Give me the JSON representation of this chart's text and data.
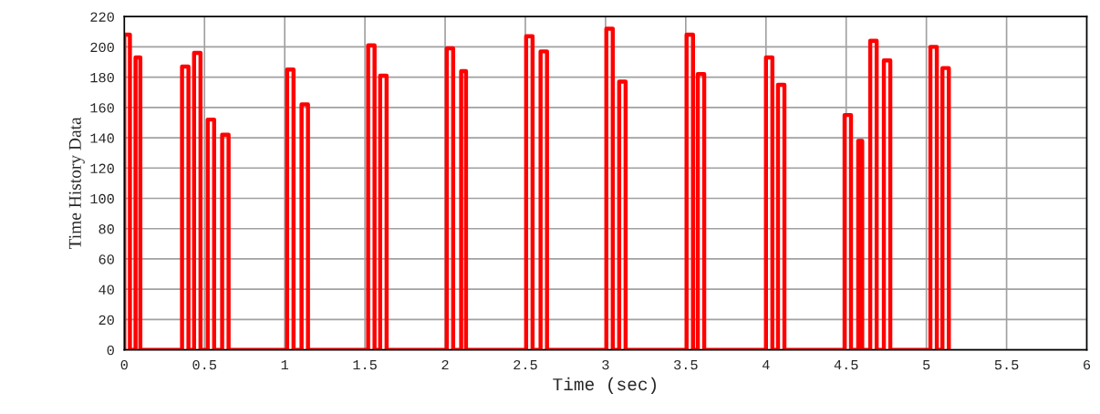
{
  "chart_data": {
    "type": "line",
    "xlabel": "Time (sec)",
    "ylabel": "Time History Data",
    "xlim": [
      0,
      6
    ],
    "ylim": [
      0,
      220
    ],
    "xticks": [
      0,
      0.5,
      1,
      1.5,
      2,
      2.5,
      3,
      3.5,
      4,
      4.5,
      5,
      5.5,
      6
    ],
    "yticks": [
      0,
      20,
      40,
      60,
      80,
      100,
      120,
      140,
      160,
      180,
      200,
      220
    ],
    "grid": true,
    "marker": "none",
    "line_style": "solid",
    "series": [
      {
        "color": "#ff0000",
        "x": [
          0,
          0,
          0.035,
          0.035,
          0.07,
          0.07,
          0.1,
          0.1,
          0.36,
          0.36,
          0.4,
          0.4,
          0.435,
          0.435,
          0.475,
          0.475,
          0.52,
          0.52,
          0.56,
          0.56,
          0.61,
          0.61,
          0.65,
          0.65,
          1.015,
          1.015,
          1.055,
          1.055,
          1.105,
          1.105,
          1.145,
          1.145,
          1.52,
          1.52,
          1.56,
          1.56,
          1.595,
          1.595,
          1.635,
          1.635,
          2.01,
          2.01,
          2.05,
          2.05,
          2.1,
          2.1,
          2.13,
          2.13,
          2.505,
          2.505,
          2.545,
          2.545,
          2.595,
          2.595,
          2.635,
          2.635,
          3.005,
          3.005,
          3.045,
          3.045,
          3.085,
          3.085,
          3.125,
          3.125,
          3.505,
          3.505,
          3.545,
          3.545,
          3.575,
          3.575,
          3.615,
          3.615,
          4.0,
          4.0,
          4.04,
          4.04,
          4.075,
          4.075,
          4.115,
          4.115,
          4.49,
          4.49,
          4.53,
          4.53,
          4.575,
          4.575,
          4.6,
          4.6,
          4.65,
          4.65,
          4.69,
          4.69,
          4.735,
          4.735,
          4.775,
          4.775,
          5.025,
          5.025,
          5.065,
          5.065,
          5.1,
          5.1,
          5.14,
          5.14
        ],
        "values": [
          0,
          208,
          208,
          0,
          0,
          193,
          193,
          0,
          0,
          187,
          187,
          0,
          0,
          196,
          196,
          0,
          0,
          152,
          152,
          0,
          0,
          142,
          142,
          0,
          0,
          185,
          185,
          0,
          0,
          162,
          162,
          0,
          0,
          201,
          201,
          0,
          0,
          181,
          181,
          0,
          0,
          199,
          199,
          0,
          0,
          184,
          184,
          0,
          0,
          207,
          207,
          0,
          0,
          197,
          197,
          0,
          0,
          212,
          212,
          0,
          0,
          177,
          177,
          0,
          0,
          208,
          208,
          0,
          0,
          182,
          182,
          0,
          0,
          193,
          193,
          0,
          0,
          175,
          175,
          0,
          0,
          155,
          155,
          0,
          0,
          138,
          138,
          0,
          0,
          204,
          204,
          0,
          0,
          191,
          191,
          0,
          0,
          200,
          200,
          0,
          0,
          186,
          186,
          0
        ]
      }
    ]
  }
}
